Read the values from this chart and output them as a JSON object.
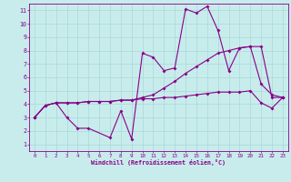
{
  "xlabel": "Windchill (Refroidissement éolien,°C)",
  "bg_color": "#c8ecec",
  "grid_color": "#a8d8d8",
  "line_color": "#880088",
  "xlim": [
    -0.5,
    23.5
  ],
  "ylim": [
    0.5,
    11.5
  ],
  "xticks": [
    0,
    1,
    2,
    3,
    4,
    5,
    6,
    7,
    8,
    9,
    10,
    11,
    12,
    13,
    14,
    15,
    16,
    17,
    18,
    19,
    20,
    21,
    22,
    23
  ],
  "yticks": [
    1,
    2,
    3,
    4,
    5,
    6,
    7,
    8,
    9,
    10,
    11
  ],
  "line1_x": [
    0,
    1,
    2,
    3,
    4,
    5,
    6,
    7,
    8,
    9,
    10,
    11,
    12,
    13,
    14,
    15,
    16,
    17,
    18,
    19,
    20,
    21,
    22,
    23
  ],
  "line1_y": [
    3.0,
    3.9,
    4.1,
    4.1,
    4.1,
    4.2,
    4.2,
    4.2,
    4.3,
    4.3,
    4.4,
    4.4,
    4.5,
    4.5,
    4.6,
    4.7,
    4.8,
    4.9,
    4.9,
    4.9,
    5.0,
    4.1,
    3.7,
    4.5
  ],
  "line2_x": [
    0,
    1,
    2,
    3,
    4,
    5,
    6,
    7,
    8,
    9,
    10,
    11,
    12,
    13,
    14,
    15,
    16,
    17,
    18,
    19,
    20,
    21,
    22,
    23
  ],
  "line2_y": [
    3.0,
    3.9,
    4.1,
    4.1,
    4.1,
    4.2,
    4.2,
    4.2,
    4.3,
    4.3,
    4.5,
    4.7,
    5.2,
    5.7,
    6.3,
    6.8,
    7.3,
    7.8,
    8.0,
    8.2,
    8.3,
    8.3,
    4.5,
    4.5
  ],
  "line3_x": [
    0,
    1,
    2,
    3,
    4,
    5,
    7,
    8,
    9,
    10,
    11,
    12,
    13,
    14,
    15,
    16,
    17,
    18,
    19,
    20,
    21,
    22,
    23
  ],
  "line3_y": [
    3.0,
    3.9,
    4.1,
    3.0,
    2.2,
    2.2,
    1.5,
    3.5,
    1.4,
    7.8,
    7.5,
    6.5,
    6.7,
    11.1,
    10.8,
    11.3,
    9.5,
    6.5,
    8.2,
    8.3,
    5.5,
    4.7,
    4.5
  ]
}
